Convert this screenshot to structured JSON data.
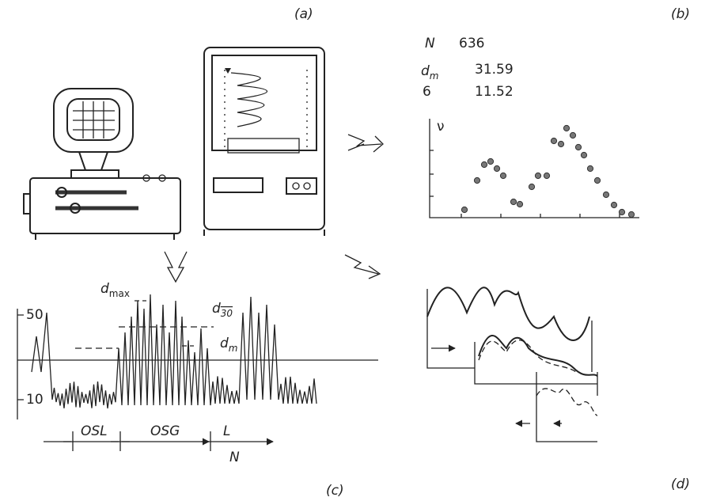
{
  "panels": {
    "a": "(a)",
    "b": "(b)",
    "c": "(c)",
    "d": "(d)"
  },
  "stats": {
    "rows": [
      {
        "symbol": "N",
        "value": 636
      },
      {
        "symbol": "d",
        "subscript": "m",
        "value": 31.59
      },
      {
        "symbol": "6",
        "value": 11.52
      }
    ]
  },
  "histogram": {
    "axis_label": "ν"
  },
  "trace": {
    "ticks": [
      "50",
      "10"
    ],
    "labels": {
      "dmax": {
        "symbol": "d",
        "subscript": "max"
      },
      "d30": {
        "symbol": "d",
        "subscript": "30"
      },
      "dm": {
        "symbol": "d",
        "subscript": "m"
      }
    },
    "segments": [
      "OSL",
      "OSG",
      "L"
    ],
    "total": "N"
  }
}
